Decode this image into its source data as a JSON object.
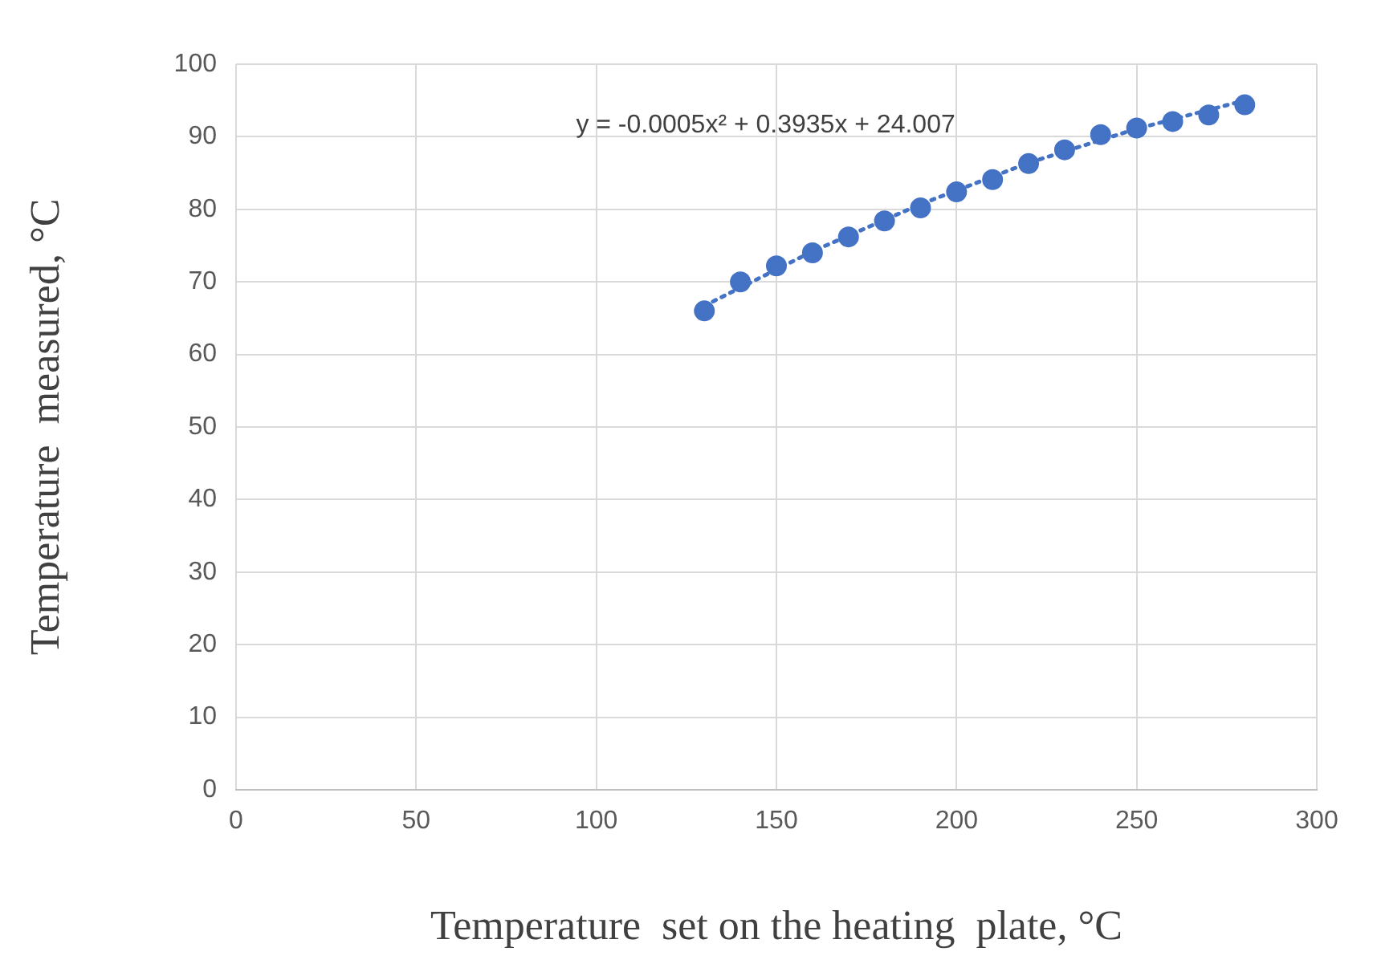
{
  "chart_data": {
    "type": "scatter",
    "xlabel": "Temperature  set on the heating  plate, °C",
    "ylabel": "Temperature  measured, °C",
    "x": [
      130,
      140,
      150,
      160,
      170,
      180,
      190,
      200,
      210,
      220,
      230,
      240,
      250,
      260,
      270,
      280
    ],
    "series": [
      {
        "color": "#4472c4",
        "values": [
          66,
          70,
          72.2,
          74,
          76.2,
          78.4,
          80.2,
          82.4,
          84.1,
          86.3,
          88.2,
          90.3,
          91.2,
          92.1,
          93,
          94.4
        ],
        "marker": "circle"
      },
      {
        "type": "line",
        "color": "#4472c4",
        "line_style": "dotted",
        "marker": "none",
        "x": [
          130,
          160,
          190,
          220,
          250,
          280
        ],
        "values": [
          66.7,
          74.2,
          80.7,
          86.4,
          91.1,
          95
        ]
      }
    ],
    "xlim": [
      0,
      300
    ],
    "xticks": [
      0,
      50,
      100,
      150,
      200,
      250,
      300
    ],
    "ylim": [
      0,
      100
    ],
    "yticks": [
      0,
      10,
      20,
      30,
      40,
      50,
      60,
      70,
      80,
      90,
      100
    ],
    "grid": true,
    "legend": false,
    "annotations": [
      "y = -0.0005x² + 0.3935x + 24.007"
    ]
  }
}
